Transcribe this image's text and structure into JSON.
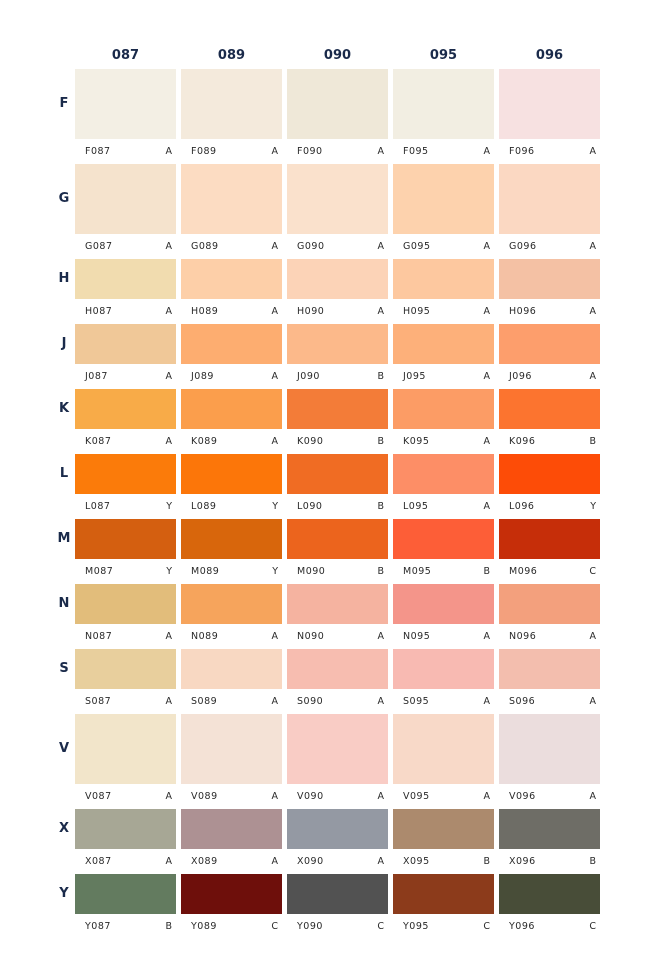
{
  "columns": [
    "087",
    "089",
    "090",
    "095",
    "096"
  ],
  "rows": [
    {
      "label": "F",
      "swatches": [
        {
          "code": "F087",
          "grade": "A",
          "color": "#F3EFE4"
        },
        {
          "code": "F089",
          "grade": "A",
          "color": "#F4EADC"
        },
        {
          "code": "F090",
          "grade": "A",
          "color": "#EFE8D8"
        },
        {
          "code": "F095",
          "grade": "A",
          "color": "#F2EEE2"
        },
        {
          "code": "F096",
          "grade": "A",
          "color": "#F7E1E1"
        }
      ]
    },
    {
      "label": "G",
      "swatches": [
        {
          "code": "G087",
          "grade": "A",
          "color": "#F5E3CD"
        },
        {
          "code": "G089",
          "grade": "A",
          "color": "#FCDCC2"
        },
        {
          "code": "G090",
          "grade": "A",
          "color": "#FAE1CC"
        },
        {
          "code": "G095",
          "grade": "A",
          "color": "#FDD2AD"
        },
        {
          "code": "G096",
          "grade": "A",
          "color": "#FBD8C2"
        }
      ]
    },
    {
      "label": "H",
      "swatches": [
        {
          "code": "H087",
          "grade": "A",
          "color": "#F1DCAF"
        },
        {
          "code": "H089",
          "grade": "A",
          "color": "#FDCFA8"
        },
        {
          "code": "H090",
          "grade": "A",
          "color": "#FCD3B7"
        },
        {
          "code": "H095",
          "grade": "A",
          "color": "#FDC89F"
        },
        {
          "code": "H096",
          "grade": "A",
          "color": "#F4C1A4"
        }
      ]
    },
    {
      "label": "J",
      "swatches": [
        {
          "code": "J087",
          "grade": "A",
          "color": "#F0C898"
        },
        {
          "code": "J089",
          "grade": "A",
          "color": "#FDAD70"
        },
        {
          "code": "J090",
          "grade": "B",
          "color": "#FCB98A"
        },
        {
          "code": "J095",
          "grade": "A",
          "color": "#FDB07A"
        },
        {
          "code": "J096",
          "grade": "A",
          "color": "#FD9E6C"
        }
      ]
    },
    {
      "label": "K",
      "swatches": [
        {
          "code": "K087",
          "grade": "A",
          "color": "#F8AB48"
        },
        {
          "code": "K089",
          "grade": "A",
          "color": "#FB9E4C"
        },
        {
          "code": "K090",
          "grade": "B",
          "color": "#F37C38"
        },
        {
          "code": "K095",
          "grade": "A",
          "color": "#FC9C65"
        },
        {
          "code": "K096",
          "grade": "B",
          "color": "#FC742F"
        }
      ]
    },
    {
      "label": "L",
      "swatches": [
        {
          "code": "L087",
          "grade": "Y",
          "color": "#FB7B0A"
        },
        {
          "code": "L089",
          "grade": "Y",
          "color": "#FC7609"
        },
        {
          "code": "L090",
          "grade": "B",
          "color": "#F06C23"
        },
        {
          "code": "L095",
          "grade": "A",
          "color": "#FD8E66"
        },
        {
          "code": "L096",
          "grade": "Y",
          "color": "#FD4C07"
        }
      ]
    },
    {
      "label": "M",
      "swatches": [
        {
          "code": "M087",
          "grade": "Y",
          "color": "#D45F10"
        },
        {
          "code": "M089",
          "grade": "Y",
          "color": "#D8660C"
        },
        {
          "code": "M090",
          "grade": "B",
          "color": "#EC641D"
        },
        {
          "code": "M095",
          "grade": "B",
          "color": "#FD5E37"
        },
        {
          "code": "M096",
          "grade": "C",
          "color": "#C62E09"
        }
      ]
    },
    {
      "label": "N",
      "swatches": [
        {
          "code": "N087",
          "grade": "A",
          "color": "#E2BD7B"
        },
        {
          "code": "N089",
          "grade": "A",
          "color": "#F6A45C"
        },
        {
          "code": "N090",
          "grade": "A",
          "color": "#F5B3A0"
        },
        {
          "code": "N095",
          "grade": "A",
          "color": "#F4958A"
        },
        {
          "code": "N096",
          "grade": "A",
          "color": "#F3A07D"
        }
      ]
    },
    {
      "label": "S",
      "swatches": [
        {
          "code": "S087",
          "grade": "A",
          "color": "#E8CF9D"
        },
        {
          "code": "S089",
          "grade": "A",
          "color": "#F8D8C2"
        },
        {
          "code": "S090",
          "grade": "A",
          "color": "#F7BDB0"
        },
        {
          "code": "S095",
          "grade": "A",
          "color": "#F8BAB2"
        },
        {
          "code": "S096",
          "grade": "A",
          "color": "#F3BEAE"
        }
      ]
    },
    {
      "label": "V",
      "swatches": [
        {
          "code": "V087",
          "grade": "A",
          "color": "#F2E5CA"
        },
        {
          "code": "V089",
          "grade": "A",
          "color": "#F4E2D6"
        },
        {
          "code": "V090",
          "grade": "A",
          "color": "#F9CCC5"
        },
        {
          "code": "V095",
          "grade": "A",
          "color": "#F8D9C8"
        },
        {
          "code": "V096",
          "grade": "A",
          "color": "#EBDDDD"
        }
      ]
    },
    {
      "label": "X",
      "swatches": [
        {
          "code": "X087",
          "grade": "A",
          "color": "#A7A795"
        },
        {
          "code": "X089",
          "grade": "A",
          "color": "#AD9193"
        },
        {
          "code": "X090",
          "grade": "A",
          "color": "#9499A3"
        },
        {
          "code": "X095",
          "grade": "B",
          "color": "#AC8A6D"
        },
        {
          "code": "X096",
          "grade": "B",
          "color": "#6E6D66"
        }
      ]
    },
    {
      "label": "Y",
      "swatches": [
        {
          "code": "Y087",
          "grade": "B",
          "color": "#637B5F"
        },
        {
          "code": "Y089",
          "grade": "C",
          "color": "#6E0F0B"
        },
        {
          "code": "Y090",
          "grade": "C",
          "color": "#525252"
        },
        {
          "code": "Y095",
          "grade": "C",
          "color": "#8C3B1B"
        },
        {
          "code": "Y096",
          "grade": "C",
          "color": "#484D38"
        }
      ]
    }
  ]
}
